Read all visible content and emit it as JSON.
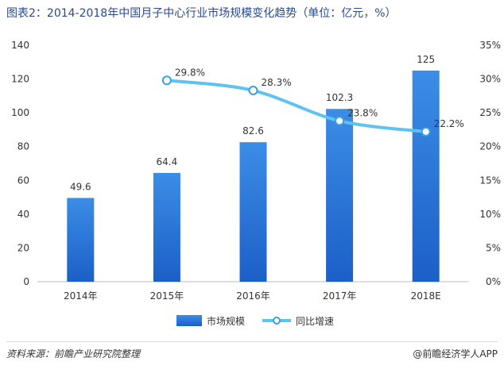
{
  "title": "图表2：2014-2018年中国月子中心行业市场规模变化趋势（单位：亿元，%）",
  "chart_data": {
    "type": "bar+line",
    "categories": [
      "2014年",
      "2015年",
      "2016年",
      "2017年",
      "2018E"
    ],
    "series": [
      {
        "name": "市场规模",
        "type": "bar",
        "axis": "left",
        "values": [
          49.6,
          64.4,
          82.6,
          102.3,
          125
        ],
        "labels": [
          "49.6",
          "64.4",
          "82.6",
          "102.3",
          "125"
        ]
      },
      {
        "name": "同比增速",
        "type": "line",
        "axis": "right",
        "points": [
          {
            "category": "2015年",
            "value": 29.8,
            "label": "29.8%"
          },
          {
            "category": "2016年",
            "value": 28.3,
            "label": "28.3%"
          },
          {
            "category": "2017年",
            "value": 23.8,
            "label": "23.8%"
          },
          {
            "category": "2018E",
            "value": 22.2,
            "label": "22.2%"
          }
        ]
      }
    ],
    "y_left": {
      "min": 0,
      "max": 140,
      "ticks": [
        "0",
        "20",
        "40",
        "60",
        "80",
        "100",
        "120",
        "140"
      ]
    },
    "y_right": {
      "min": 0,
      "max": 35,
      "ticks": [
        "0%",
        "5%",
        "10%",
        "15%",
        "20%",
        "25%",
        "30%",
        "35%"
      ]
    },
    "grid": false,
    "legend_position": "bottom"
  },
  "colors": {
    "bar_top": "#3b8de6",
    "bar_bottom": "#1c5fc7",
    "line": "#5ec3f2",
    "marker": "#3aa0e0"
  },
  "footer": {
    "source": "资料来源：前瞻产业研究院整理",
    "brand": "@前瞻经济学人APP"
  }
}
